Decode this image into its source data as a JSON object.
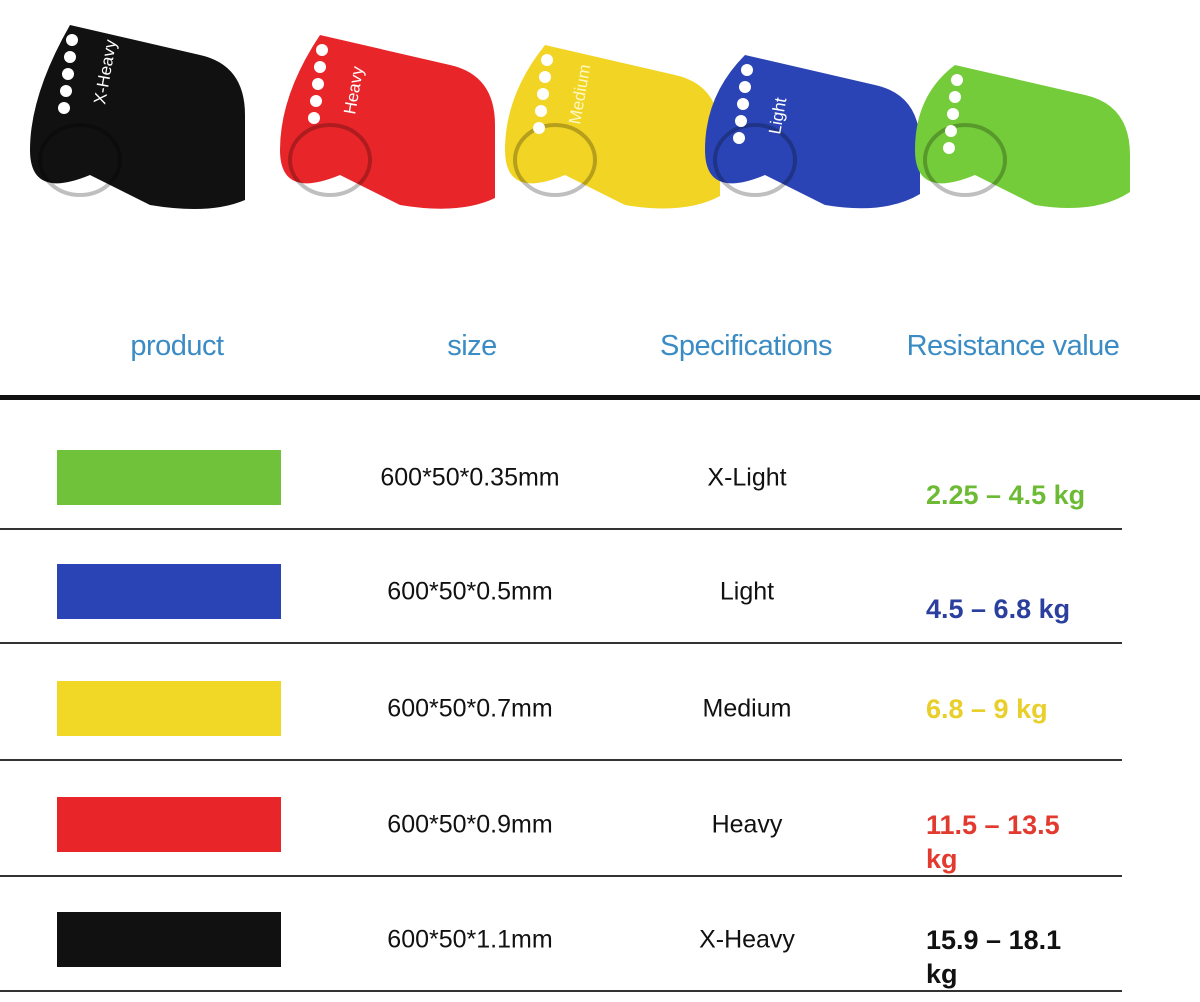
{
  "bands_image": {
    "bands": [
      {
        "label": "X-Heavy",
        "color": "#111111"
      },
      {
        "label": "Heavy",
        "color": "#e8262a"
      },
      {
        "label": "Medium",
        "color": "#f2d424"
      },
      {
        "label": "Light",
        "color": "#2a44b5"
      },
      {
        "label": "",
        "color": "#74cc3a"
      }
    ]
  },
  "table": {
    "headers": [
      "product",
      "size",
      "Specifications",
      "Resistance value"
    ],
    "header_color": "#3b8cc4",
    "rows": [
      {
        "swatch_color": "#6fc23a",
        "size": "600*50*0.35mm",
        "spec": "X-Light",
        "resistance": "2.25 – 4.5 kg",
        "resistance_color": "#6dbb35"
      },
      {
        "swatch_color": "#2a44b5",
        "size": "600*50*0.5mm",
        "spec": "Light",
        "resistance": "4.5 – 6.8 kg",
        "resistance_color": "#2b3f9e"
      },
      {
        "swatch_color": "#f2d826",
        "size": "600*50*0.7mm",
        "spec": "Medium",
        "resistance": "6.8 – 9 kg",
        "resistance_color": "#e8cf2a"
      },
      {
        "swatch_color": "#e8262a",
        "size": "600*50*0.9mm",
        "spec": "Heavy",
        "resistance": "11.5 – 13.5 kg",
        "resistance_color": "#e23a2e"
      },
      {
        "swatch_color": "#111111",
        "size": "600*50*1.1mm",
        "spec": "X-Heavy",
        "resistance": "15.9 – 18.1 kg",
        "resistance_color": "#111111"
      }
    ]
  }
}
